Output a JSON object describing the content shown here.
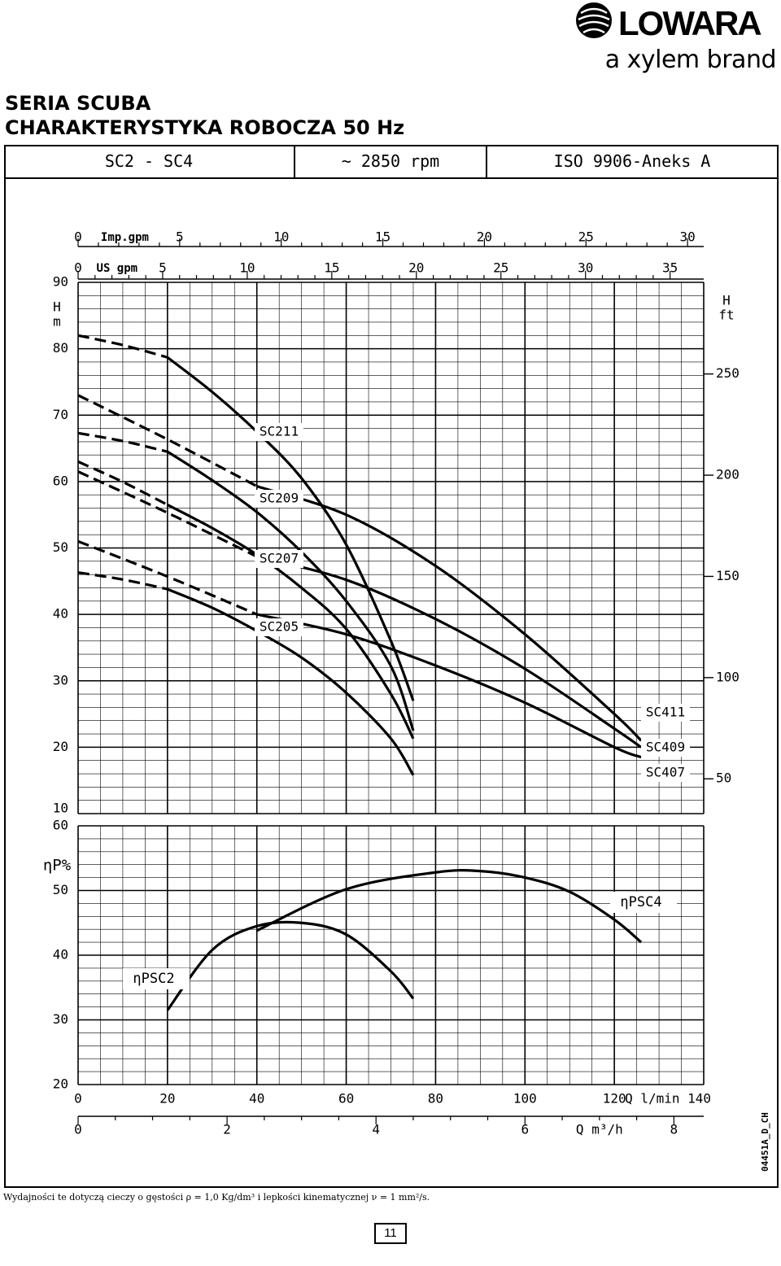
{
  "brand": {
    "name": "LOWARA",
    "tagline": "a xylem brand",
    "logo_icon": "lowara-swirl-icon"
  },
  "title": {
    "line1": "SERIA SCUBA",
    "line2": "CHARAKTERYSTYKA ROBOCZA 50 Hz"
  },
  "header": {
    "model_range": "SC2 - SC4",
    "speed": "~ 2850 rpm",
    "standard": "ISO 9906-Aneks A"
  },
  "footer_note": "Wydajności te dotyczą cieczy o gęstości ρ = 1,0 Kg/dm³ i lepkości kinematycznej ν = 1 mm²/s.",
  "page_number": "11",
  "drawing_code": "04451A_D_CH",
  "chart_data": [
    {
      "type": "line",
      "title": "",
      "xlabel": "Q l/min",
      "ylabel": "H m",
      "y2label": "H ft",
      "xlim": [
        0,
        140
      ],
      "ylim": [
        10,
        90
      ],
      "x_ticks": [
        0,
        20,
        40,
        60,
        80,
        100,
        120,
        140
      ],
      "y_ticks": [
        10,
        20,
        30,
        40,
        50,
        60,
        70,
        80,
        90
      ],
      "y2_ticks": [
        50,
        100,
        150,
        200,
        250
      ],
      "top_axis_imp_gpm": {
        "label": "Imp.gpm",
        "ticks": [
          0,
          5,
          10,
          15,
          20,
          25,
          30
        ]
      },
      "top_axis_us_gpm": {
        "label": "US gpm",
        "ticks": [
          0,
          5,
          10,
          15,
          20,
          25,
          30,
          35
        ]
      },
      "bottom_axis_m3h": {
        "label": "Q m³/h",
        "ticks": [
          0,
          2,
          4,
          6,
          8
        ]
      },
      "grid": true,
      "series": [
        {
          "name": "SC211",
          "dashed_x": [
            0,
            20
          ],
          "x": [
            20,
            30,
            40,
            50,
            60,
            70,
            75
          ],
          "y": [
            78.7,
            73.5,
            67.5,
            60.5,
            50.5,
            36,
            27
          ]
        },
        {
          "name": "SC209",
          "dashed_x": [
            0,
            20
          ],
          "x": [
            20,
            30,
            40,
            50,
            60,
            70,
            75
          ],
          "y": [
            64.5,
            60.2,
            55.4,
            49.4,
            42,
            32.2,
            22.5
          ]
        },
        {
          "name": "SC207",
          "dashed_x": [
            0,
            20
          ],
          "x": [
            20,
            30,
            40,
            50,
            60,
            70,
            75
          ],
          "y": [
            56.5,
            53,
            49,
            44,
            37.8,
            28,
            21.3
          ]
        },
        {
          "name": "SC205",
          "dashed_x": [
            0,
            20
          ],
          "x": [
            20,
            30,
            40,
            50,
            60,
            70,
            75
          ],
          "y": [
            43.8,
            41,
            37.5,
            33.5,
            28.2,
            21.3,
            15.8
          ]
        },
        {
          "name": "SC411",
          "dashed_x": [
            0,
            40
          ],
          "x": [
            40,
            60,
            80,
            100,
            120,
            126
          ],
          "y": [
            59.3,
            55,
            47.3,
            37,
            25,
            21
          ]
        },
        {
          "name": "SC409",
          "dashed_x": [
            0,
            40
          ],
          "x": [
            40,
            60,
            80,
            100,
            120,
            126
          ],
          "y": [
            48.7,
            45.2,
            39.3,
            31.8,
            22.8,
            20
          ]
        },
        {
          "name": "SC407",
          "dashed_x": [
            0,
            40
          ],
          "x": [
            40,
            60,
            80,
            100,
            120,
            126
          ],
          "y": [
            40,
            37,
            32.3,
            26.7,
            20,
            18.5
          ]
        }
      ]
    },
    {
      "type": "line",
      "title": "",
      "xlabel": "Q l/min",
      "ylabel": "ηP %",
      "xlim": [
        0,
        140
      ],
      "ylim": [
        20,
        60
      ],
      "y_ticks": [
        20,
        30,
        40,
        50,
        60
      ],
      "grid": true,
      "series": [
        {
          "name": "ηPSC2",
          "x": [
            20,
            30,
            40,
            50,
            60,
            70,
            75
          ],
          "y": [
            31.5,
            40.8,
            44.5,
            45,
            43.2,
            37.5,
            33.3
          ]
        },
        {
          "name": "ηPSC4",
          "x": [
            40,
            60,
            80,
            90,
            100,
            110,
            120,
            126
          ],
          "y": [
            43.8,
            50.2,
            52.8,
            53,
            52,
            49.8,
            45.5,
            42
          ]
        }
      ]
    }
  ]
}
